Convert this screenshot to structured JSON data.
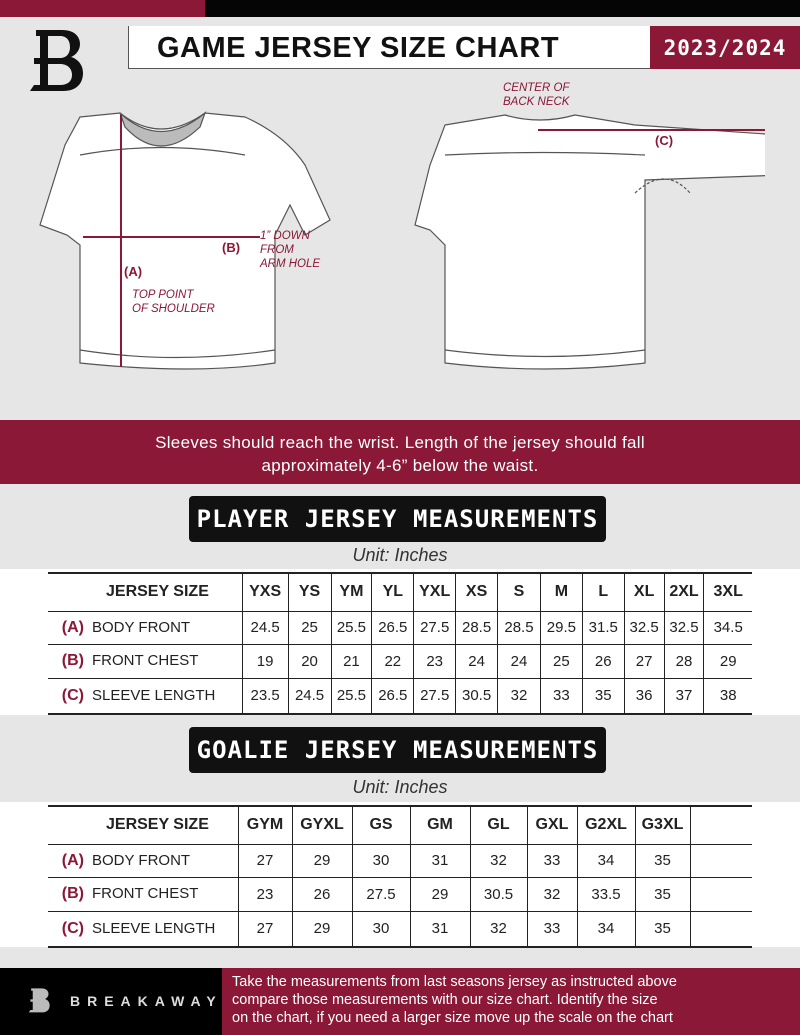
{
  "header": {
    "title": "GAME JERSEY SIZE CHART",
    "season": "2023/2024"
  },
  "diagram": {
    "front_labels": {
      "a": "(A)",
      "a_note": [
        "TOP POINT",
        "OF SHOULDER"
      ],
      "b": "(B)",
      "b_note": [
        "1” DOWN",
        "FROM",
        "ARM HOLE"
      ]
    },
    "back_labels": {
      "c": "(C)",
      "c_note": [
        "CENTER OF",
        "BACK NECK"
      ]
    }
  },
  "instructions": [
    "Sleeves should reach the wrist. Length of the jersey should fall",
    "approximately 4-6” below the waist."
  ],
  "player": {
    "title": "PLAYER JERSEY MEASUREMENTS",
    "unit": "Unit: Inches",
    "size_label": "JERSEY SIZE",
    "sizes": [
      "YXS",
      "YS",
      "YM",
      "YL",
      "YXL",
      "XS",
      "S",
      "M",
      "L",
      "XL",
      "2XL",
      "3XL"
    ],
    "rows": [
      {
        "letter": "(A)",
        "label": "BODY FRONT",
        "values": [
          "24.5",
          "25",
          "25.5",
          "26.5",
          "27.5",
          "28.5",
          "28.5",
          "29.5",
          "31.5",
          "32.5",
          "32.5",
          "34.5"
        ]
      },
      {
        "letter": "(B)",
        "label": "FRONT CHEST",
        "values": [
          "19",
          "20",
          "21",
          "22",
          "23",
          "24",
          "24",
          "25",
          "26",
          "27",
          "28",
          "29"
        ]
      },
      {
        "letter": "(C)",
        "label": "SLEEVE LENGTH",
        "values": [
          "23.5",
          "24.5",
          "25.5",
          "26.5",
          "27.5",
          "30.5",
          "32",
          "33",
          "35",
          "36",
          "37",
          "38"
        ]
      }
    ]
  },
  "goalie": {
    "title": "GOALIE JERSEY MEASUREMENTS",
    "unit": "Unit: Inches",
    "size_label": "JERSEY SIZE",
    "sizes": [
      "GYM",
      "GYXL",
      "GS",
      "GM",
      "GL",
      "GXL",
      "G2XL",
      "G3XL",
      ""
    ],
    "rows": [
      {
        "letter": "(A)",
        "label": "BODY FRONT",
        "values": [
          "27",
          "29",
          "30",
          "31",
          "32",
          "33",
          "34",
          "35",
          ""
        ]
      },
      {
        "letter": "(B)",
        "label": "FRONT CHEST",
        "values": [
          "23",
          "26",
          "27.5",
          "29",
          "30.5",
          "32",
          "33.5",
          "35",
          ""
        ]
      },
      {
        "letter": "(C)",
        "label": "SLEEVE LENGTH",
        "values": [
          "27",
          "29",
          "30",
          "31",
          "32",
          "33",
          "34",
          "35",
          ""
        ]
      }
    ]
  },
  "footer": {
    "brand": "BREAKAWAY",
    "text": [
      "Take the measurements from last seasons jersey as instructed above",
      "compare those measurements  with our size chart. Identify the size",
      "on the chart, if you need a larger size move up the scale on the chart"
    ]
  },
  "colors": {
    "accent": "#8a1836",
    "dark": "#050505",
    "background": "#e6e6e7"
  }
}
